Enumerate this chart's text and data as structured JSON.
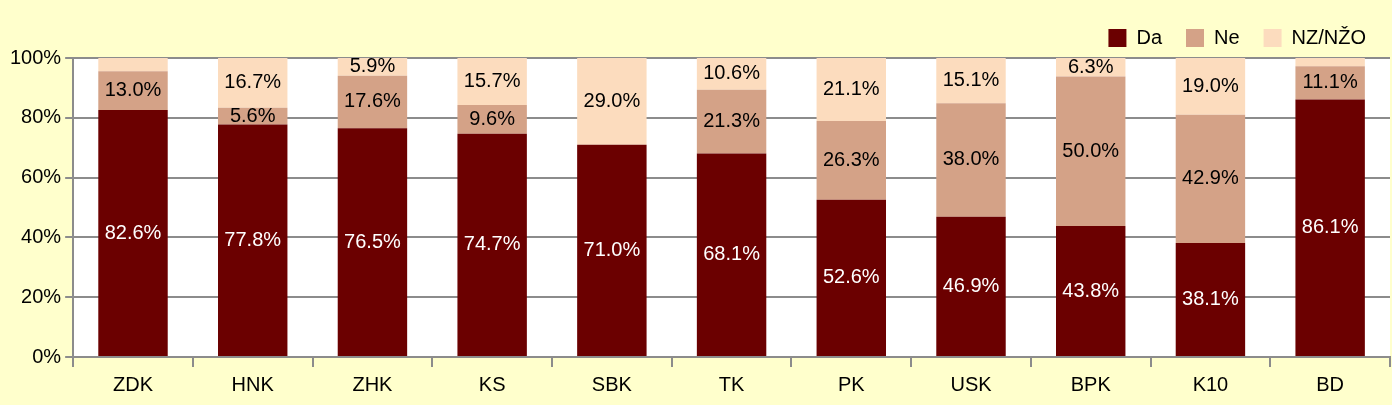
{
  "chart_data": {
    "type": "bar",
    "stacked": true,
    "categories": [
      "ZDK",
      "HNK",
      "ZHK",
      "KS",
      "SBK",
      "TK",
      "PK",
      "USK",
      "BPK",
      "K10",
      "BD"
    ],
    "series": [
      {
        "name": "Da",
        "color": "#6b0000",
        "values": [
          82.6,
          77.8,
          76.5,
          74.7,
          71.0,
          68.1,
          52.6,
          46.9,
          43.8,
          38.1,
          86.1
        ],
        "value_labels": [
          "82.6%",
          "77.8%",
          "76.5%",
          "74.7%",
          "71.0%",
          "68.1%",
          "52.6%",
          "46.9%",
          "43.8%",
          "38.1%",
          "86.1%"
        ]
      },
      {
        "name": "Ne",
        "color": "#d4a287",
        "values": [
          13.0,
          5.6,
          17.6,
          9.6,
          null,
          21.3,
          26.3,
          38.0,
          50.0,
          42.9,
          11.1
        ],
        "value_labels": [
          "13.0%",
          "5.6%",
          "17.6%",
          "9.6%",
          null,
          "21.3%",
          "26.3%",
          "38.0%",
          "50.0%",
          "42.9%",
          "11.1%"
        ]
      },
      {
        "name": "NZ/NŽO",
        "color": "#fcdcbe",
        "values": [
          4.4,
          16.7,
          5.9,
          15.7,
          29.0,
          10.6,
          21.1,
          15.1,
          6.3,
          19.0,
          2.8
        ],
        "value_labels": [
          null,
          "16.7%",
          "5.9%",
          "15.7%",
          "29.0%",
          "10.6%",
          "21.1%",
          "15.1%",
          "6.3%",
          "19.0%",
          null
        ]
      }
    ],
    "ylim": [
      0,
      100
    ],
    "yticks": [
      {
        "value": 0,
        "label": "0%"
      },
      {
        "value": 20,
        "label": "20%"
      },
      {
        "value": 40,
        "label": "40%"
      },
      {
        "value": 60,
        "label": "60%"
      },
      {
        "value": 80,
        "label": "80%"
      },
      {
        "value": 100,
        "label": "100%"
      }
    ],
    "grid": "y",
    "legend": "top right"
  }
}
